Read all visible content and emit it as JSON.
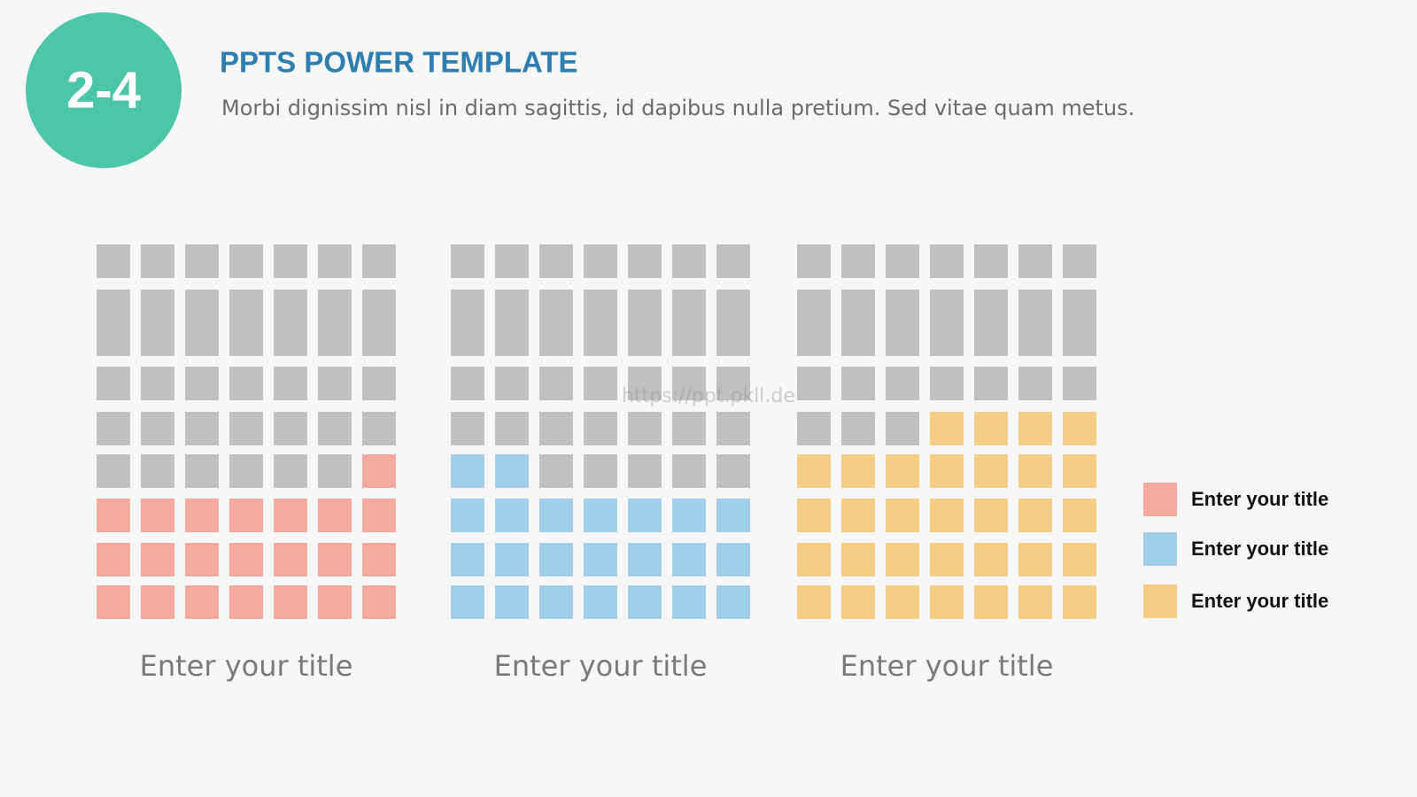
{
  "badge": "2-4",
  "header": {
    "title": "PPTS POWER TEMPLATE",
    "subtitle": "Morbi dignissim nisl in diam sagittis, id dapibus nulla pretium. Sed vitae quam metus."
  },
  "watermark": "https://ppt.pkll.de",
  "empty_color": "#c0bfc1",
  "charts": [
    {
      "label": "Enter your title",
      "filled": 22,
      "rows": 8,
      "columns": 7,
      "color": "#f5aaa0",
      "fill_from": "right"
    },
    {
      "label": "Enter your title",
      "filled": 23,
      "rows": 8,
      "columns": 7,
      "color": "#9fd0e8",
      "fill_from": "left"
    },
    {
      "label": "Enter your title",
      "filled": 32,
      "rows": 8,
      "columns": 7,
      "color": "#f5cd85",
      "fill_from": "right"
    }
  ],
  "legend": [
    {
      "label": "Enter your title",
      "color": "#f5aaa0"
    },
    {
      "label": "Enter your title",
      "color": "#9fd0e8"
    },
    {
      "label": "Enter your title",
      "color": "#f5cd85"
    }
  ]
}
